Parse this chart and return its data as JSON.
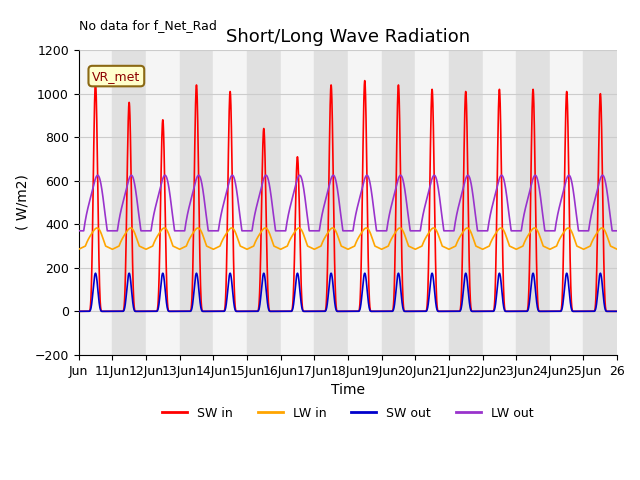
{
  "title": "Short/Long Wave Radiation",
  "ylabel": "( W/m2)",
  "xlabel": "Time",
  "no_data_text": "No data for f_Net_Rad",
  "vr_met_label": "VR_met",
  "ylim": [
    -200,
    1200
  ],
  "xlim": [
    0,
    16
  ],
  "xtick_labels": [
    "Jun",
    "11Jun",
    "12Jun",
    "13Jun",
    "14Jun",
    "15Jun",
    "16Jun",
    "17Jun",
    "18Jun",
    "19Jun",
    "20Jun",
    "21Jun",
    "22Jun",
    "23Jun",
    "24Jun",
    "25Jun",
    "26"
  ],
  "colors": {
    "SW_in": "#ff0000",
    "LW_in": "#ffa500",
    "SW_out": "#0000cc",
    "LW_out": "#9933cc"
  },
  "sw_in_peaks": [
    1050,
    960,
    880,
    1040,
    1010,
    840,
    710,
    1040,
    1060,
    1040,
    1020,
    1010,
    1020,
    1020,
    1010,
    1000
  ],
  "lw_in_base": 300,
  "lw_in_peak_add": 80,
  "lw_out_night": 370,
  "lw_out_peak": 610,
  "sw_out_peak": 175,
  "n_days": 16,
  "pts_per_day": 480,
  "background_gray": "#e0e0e0",
  "background_white": "#f5f5f5",
  "title_fontsize": 13,
  "label_fontsize": 10,
  "tick_fontsize": 9,
  "linewidth": 1.2
}
